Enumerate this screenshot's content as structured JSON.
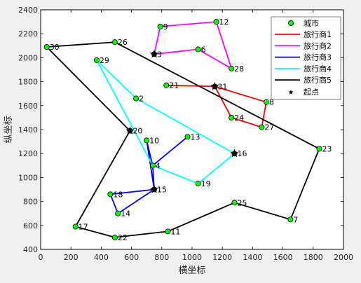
{
  "chart_data": {
    "type": "line",
    "xlabel": "横坐标",
    "ylabel": "纵坐标",
    "xlim": [
      0,
      2000
    ],
    "ylim": [
      400,
      2400
    ],
    "xticks": [
      0,
      200,
      400,
      600,
      800,
      1000,
      1200,
      1400,
      1600,
      1800,
      2000
    ],
    "yticks": [
      400,
      600,
      800,
      1000,
      1200,
      1400,
      1600,
      1800,
      2000,
      2200,
      2400
    ],
    "grid": false,
    "legend_position": "top-right",
    "cities": [
      {
        "label": "2",
        "x": 630,
        "y": 1660
      },
      {
        "label": "3",
        "x": 750,
        "y": 2030
      },
      {
        "label": "4",
        "x": 740,
        "y": 1100
      },
      {
        "label": "6",
        "x": 1040,
        "y": 2070
      },
      {
        "label": "7",
        "x": 1650,
        "y": 650
      },
      {
        "label": "8",
        "x": 1490,
        "y": 1630
      },
      {
        "label": "9",
        "x": 790,
        "y": 2260
      },
      {
        "label": "10",
        "x": 700,
        "y": 1310
      },
      {
        "label": "11",
        "x": 840,
        "y": 550
      },
      {
        "label": "12",
        "x": 1160,
        "y": 2300
      },
      {
        "label": "13",
        "x": 970,
        "y": 1340
      },
      {
        "label": "14",
        "x": 510,
        "y": 700
      },
      {
        "label": "15",
        "x": 750,
        "y": 900
      },
      {
        "label": "16",
        "x": 1280,
        "y": 1200
      },
      {
        "label": "17",
        "x": 230,
        "y": 590
      },
      {
        "label": "18",
        "x": 460,
        "y": 860
      },
      {
        "label": "19",
        "x": 1040,
        "y": 950
      },
      {
        "label": "20",
        "x": 590,
        "y": 1390
      },
      {
        "label": "21",
        "x": 830,
        "y": 1770
      },
      {
        "label": "22",
        "x": 490,
        "y": 500
      },
      {
        "label": "23",
        "x": 1840,
        "y": 1240
      },
      {
        "label": "24",
        "x": 1260,
        "y": 1500
      },
      {
        "label": "25",
        "x": 1280,
        "y": 790
      },
      {
        "label": "26",
        "x": 490,
        "y": 2130
      },
      {
        "label": "27",
        "x": 1460,
        "y": 1420
      },
      {
        "label": "28",
        "x": 1260,
        "y": 1910
      },
      {
        "label": "29",
        "x": 370,
        "y": 1980
      },
      {
        "label": "30",
        "x": 40,
        "y": 2090
      },
      {
        "label": "31",
        "x": 1150,
        "y": 1760
      }
    ],
    "series": [
      {
        "name": "旅行商1",
        "color": "#ff0000",
        "points": [
          [
            1150,
            1760
          ],
          [
            830,
            1770
          ],
          [
            1150,
            1760
          ],
          [
            1490,
            1630
          ],
          [
            1460,
            1420
          ],
          [
            1260,
            1500
          ],
          [
            1150,
            1760
          ]
        ]
      },
      {
        "name": "旅行商2",
        "color": "#ff00ff",
        "points": [
          [
            750,
            2030
          ],
          [
            790,
            2260
          ],
          [
            1160,
            2300
          ],
          [
            1260,
            1910
          ],
          [
            1040,
            2070
          ],
          [
            750,
            2030
          ]
        ]
      },
      {
        "name": "旅行商3",
        "color": "#0000ff",
        "points": [
          [
            750,
            900
          ],
          [
            460,
            860
          ],
          [
            510,
            700
          ],
          [
            750,
            900
          ],
          [
            740,
            1100
          ],
          [
            970,
            1340
          ],
          [
            740,
            1100
          ],
          [
            700,
            1310
          ],
          [
            750,
            900
          ]
        ]
      },
      {
        "name": "旅行商4",
        "color": "#00ffff",
        "points": [
          [
            1280,
            1200
          ],
          [
            1040,
            950
          ],
          [
            740,
            1100
          ],
          [
            370,
            1980
          ],
          [
            630,
            1660
          ],
          [
            1280,
            1200
          ]
        ]
      },
      {
        "name": "旅行商5",
        "color": "#000000",
        "points": [
          [
            590,
            1390
          ],
          [
            40,
            2090
          ],
          [
            490,
            2130
          ],
          [
            1840,
            1240
          ],
          [
            1650,
            650
          ],
          [
            1280,
            790
          ],
          [
            840,
            550
          ],
          [
            490,
            500
          ],
          [
            230,
            590
          ],
          [
            590,
            1390
          ]
        ]
      }
    ],
    "start_points": [
      {
        "x": 1150,
        "y": 1760
      },
      {
        "x": 750,
        "y": 2030
      },
      {
        "x": 750,
        "y": 900
      },
      {
        "x": 1280,
        "y": 1200
      },
      {
        "x": 590,
        "y": 1390
      }
    ],
    "legend": {
      "city_label": "城市",
      "start_label": "起点"
    },
    "colors": {
      "city_fill": "#00ff00",
      "city_edge": "#000000",
      "start_marker": "#000000"
    }
  }
}
